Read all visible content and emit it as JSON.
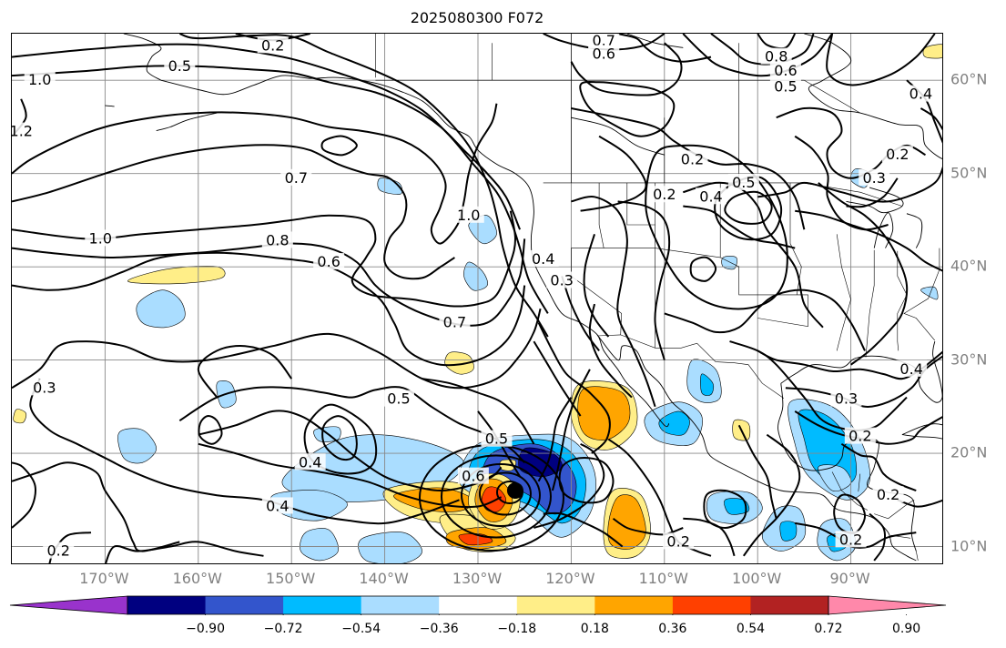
{
  "title": "2025080300 F072",
  "map": {
    "lon_range": [
      -180,
      -80
    ],
    "lat_range": [
      8,
      65
    ],
    "lon_labels": [
      "170°W",
      "160°W",
      "150°W",
      "140°W",
      "130°W",
      "120°W",
      "110°W",
      "100°W",
      "90°W"
    ],
    "lon_values": [
      -170,
      -160,
      -150,
      -140,
      -130,
      -120,
      -110,
      -100,
      -90
    ],
    "lat_labels": [
      "10°N",
      "20°N",
      "30°N",
      "40°N",
      "50°N",
      "60°N"
    ],
    "lat_values": [
      10,
      20,
      30,
      40,
      50,
      60
    ],
    "gridlines": true,
    "storm_marker": {
      "lon": -126,
      "lat": 16
    }
  },
  "contour_labels": [
    {
      "text": "0.2",
      "lon": -152,
      "lat": 63.7
    },
    {
      "text": "0.5",
      "lon": -162,
      "lat": 61.5
    },
    {
      "text": "1.0",
      "lon": -177,
      "lat": 60
    },
    {
      "text": "1.2",
      "lon": -179,
      "lat": 54.5
    },
    {
      "text": "0.7",
      "lon": -149.5,
      "lat": 49.5
    },
    {
      "text": "0.8",
      "lon": -151.5,
      "lat": 42.8
    },
    {
      "text": "0.6",
      "lon": -146,
      "lat": 40.5
    },
    {
      "text": "1.0",
      "lon": -170.5,
      "lat": 43
    },
    {
      "text": "1.0",
      "lon": -131,
      "lat": 45.5
    },
    {
      "text": "0.7",
      "lon": -132.5,
      "lat": 34
    },
    {
      "text": "0.3",
      "lon": -176.5,
      "lat": 27
    },
    {
      "text": "0.5",
      "lon": -138.5,
      "lat": 25.8
    },
    {
      "text": "0.4",
      "lon": -148,
      "lat": 19
    },
    {
      "text": "0.4",
      "lon": -151.5,
      "lat": 14.3
    },
    {
      "text": "0.2",
      "lon": -175,
      "lat": 9.5
    },
    {
      "text": "0.6",
      "lon": -130.5,
      "lat": 17.5
    },
    {
      "text": "0.5",
      "lon": -128,
      "lat": 21.5
    },
    {
      "text": "0.4",
      "lon": -123,
      "lat": 40.8
    },
    {
      "text": "0.3",
      "lon": -121,
      "lat": 38.5
    },
    {
      "text": "0.7",
      "lon": -116.5,
      "lat": 64.2
    },
    {
      "text": "0.6",
      "lon": -116.5,
      "lat": 62.8
    },
    {
      "text": "0.2",
      "lon": -107,
      "lat": 51.5
    },
    {
      "text": "0.2",
      "lon": -110,
      "lat": 47.7
    },
    {
      "text": "0.4",
      "lon": -105,
      "lat": 47.5
    },
    {
      "text": "0.5",
      "lon": -101.5,
      "lat": 49
    },
    {
      "text": "0.8",
      "lon": -98,
      "lat": 62.5
    },
    {
      "text": "0.6",
      "lon": -97,
      "lat": 61
    },
    {
      "text": "0.5",
      "lon": -97,
      "lat": 59.3
    },
    {
      "text": "0.4",
      "lon": -82.5,
      "lat": 58.5
    },
    {
      "text": "0.2",
      "lon": -85,
      "lat": 52
    },
    {
      "text": "0.3",
      "lon": -87.5,
      "lat": 49.5
    },
    {
      "text": "0.4",
      "lon": -83.5,
      "lat": 29
    },
    {
      "text": "0.3",
      "lon": -90.5,
      "lat": 25.8
    },
    {
      "text": "0.2",
      "lon": -89,
      "lat": 21.8
    },
    {
      "text": "0.2",
      "lon": -86,
      "lat": 15.5
    },
    {
      "text": "0.2",
      "lon": -90,
      "lat": 10.7
    },
    {
      "text": "0.2",
      "lon": -108.5,
      "lat": 10.5
    }
  ],
  "colorbar": {
    "boundaries": [
      -0.9,
      -0.72,
      -0.54,
      -0.36,
      -0.18,
      0.18,
      0.36,
      0.54,
      0.72,
      0.9
    ],
    "tick_labels": [
      "−0.90",
      "−0.72",
      "−0.54",
      "−0.36",
      "−0.18",
      "0.18",
      "0.36",
      "0.54",
      "0.72",
      "0.90"
    ],
    "colors": [
      "#9933cc",
      "#000080",
      "#3355cc",
      "#00bbff",
      "#aaddff",
      "#ffffff",
      "#ffee88",
      "#ffa500",
      "#ff4000",
      "#b22222",
      "#ff88aa"
    ],
    "extend": "both"
  }
}
